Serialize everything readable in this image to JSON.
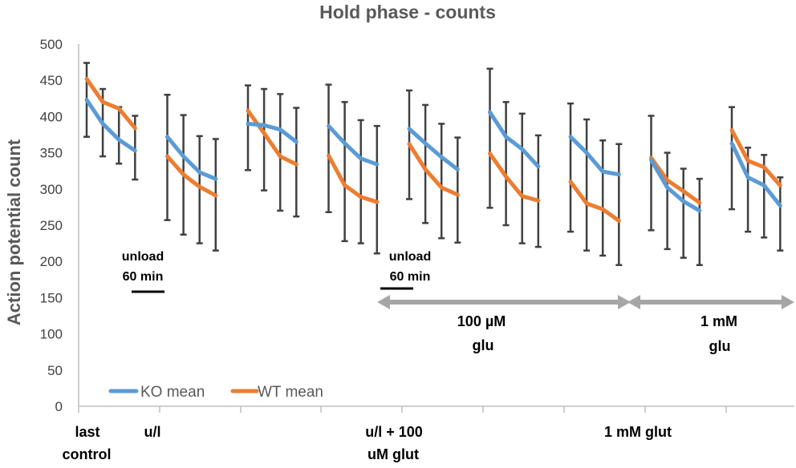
{
  "chart_data": {
    "type": "line",
    "title": "Hold phase - counts",
    "ylabel": "Action potential count",
    "xlabel": "",
    "ylim": [
      0,
      500
    ],
    "yticks": [
      0,
      50,
      100,
      150,
      200,
      250,
      300,
      350,
      400,
      450,
      500
    ],
    "grid": false,
    "legend_position": "bottom-left",
    "x_group_labels": [
      {
        "line1": "last",
        "line2": "control"
      },
      {
        "line1": "u/l",
        "line2": ""
      },
      {
        "line1": "u/l + 100",
        "line2": "uM glut"
      },
      {
        "line1": "1 mM glut",
        "line2": ""
      }
    ],
    "annotations": [
      {
        "line1": "unload",
        "line2": "60 min"
      },
      {
        "line1": "unload",
        "line2": "60 min"
      },
      {
        "line1": "100 µM",
        "line2": "glu"
      },
      {
        "line1": "1 mM",
        "line2": "glu"
      }
    ],
    "series": [
      {
        "name": "KO mean",
        "color": "#5B9BD5",
        "segments": [
          [
            {
              "x": 1,
              "y": 423,
              "lo": 372,
              "hi": 474
            },
            {
              "x": 2,
              "y": 390,
              "lo": 345,
              "hi": 438
            },
            {
              "x": 3,
              "y": 368,
              "lo": 335,
              "hi": 413
            },
            {
              "x": 4,
              "y": 353,
              "lo": 313,
              "hi": 401
            }
          ],
          [
            {
              "x": 6,
              "y": 372,
              "lo": 257,
              "hi": 430
            },
            {
              "x": 7,
              "y": 345,
              "lo": 237,
              "hi": 402
            },
            {
              "x": 8,
              "y": 323,
              "lo": 225,
              "hi": 373
            },
            {
              "x": 9,
              "y": 314,
              "lo": 215,
              "hi": 369
            }
          ],
          [
            {
              "x": 11,
              "y": 390,
              "lo": 326,
              "hi": 443
            },
            {
              "x": 12,
              "y": 388,
              "lo": 298,
              "hi": 438
            },
            {
              "x": 13,
              "y": 382,
              "lo": 270,
              "hi": 431
            },
            {
              "x": 14,
              "y": 365,
              "lo": 262,
              "hi": 412
            }
          ],
          [
            {
              "x": 16,
              "y": 387,
              "lo": 268,
              "hi": 444
            },
            {
              "x": 17,
              "y": 363,
              "lo": 228,
              "hi": 420
            },
            {
              "x": 18,
              "y": 342,
              "lo": 225,
              "hi": 395
            },
            {
              "x": 19,
              "y": 334,
              "lo": 211,
              "hi": 387
            }
          ],
          [
            {
              "x": 21,
              "y": 383,
              "lo": 286,
              "hi": 436
            },
            {
              "x": 22,
              "y": 363,
              "lo": 253,
              "hi": 416
            },
            {
              "x": 23,
              "y": 344,
              "lo": 232,
              "hi": 390
            },
            {
              "x": 24,
              "y": 327,
              "lo": 226,
              "hi": 371
            }
          ],
          [
            {
              "x": 26,
              "y": 406,
              "lo": 274,
              "hi": 466
            },
            {
              "x": 27,
              "y": 372,
              "lo": 250,
              "hi": 420
            },
            {
              "x": 28,
              "y": 355,
              "lo": 225,
              "hi": 404
            },
            {
              "x": 29,
              "y": 331,
              "lo": 220,
              "hi": 374
            }
          ],
          [
            {
              "x": 31,
              "y": 372,
              "lo": 241,
              "hi": 418
            },
            {
              "x": 32,
              "y": 350,
              "lo": 215,
              "hi": 396
            },
            {
              "x": 33,
              "y": 324,
              "lo": 208,
              "hi": 367
            },
            {
              "x": 34,
              "y": 320,
              "lo": 195,
              "hi": 362
            }
          ],
          [
            {
              "x": 36,
              "y": 340,
              "lo": 243,
              "hi": 401
            },
            {
              "x": 37,
              "y": 302,
              "lo": 217,
              "hi": 350
            },
            {
              "x": 38,
              "y": 283,
              "lo": 205,
              "hi": 328
            },
            {
              "x": 39,
              "y": 270,
              "lo": 195,
              "hi": 314
            }
          ],
          [
            {
              "x": 41,
              "y": 363,
              "lo": 272,
              "hi": 413
            },
            {
              "x": 42,
              "y": 316,
              "lo": 241,
              "hi": 357
            },
            {
              "x": 43,
              "y": 305,
              "lo": 233,
              "hi": 347
            },
            {
              "x": 44,
              "y": 277,
              "lo": 215,
              "hi": 316
            }
          ]
        ]
      },
      {
        "name": "WT mean",
        "color": "#ED7D31",
        "segments": [
          [
            {
              "x": 1,
              "y": 452
            },
            {
              "x": 2,
              "y": 420
            },
            {
              "x": 3,
              "y": 411
            },
            {
              "x": 4,
              "y": 384
            }
          ],
          [
            {
              "x": 6,
              "y": 345
            },
            {
              "x": 7,
              "y": 320
            },
            {
              "x": 8,
              "y": 303
            },
            {
              "x": 9,
              "y": 291
            }
          ],
          [
            {
              "x": 11,
              "y": 408
            },
            {
              "x": 12,
              "y": 377
            },
            {
              "x": 13,
              "y": 345
            },
            {
              "x": 14,
              "y": 334
            }
          ],
          [
            {
              "x": 16,
              "y": 346
            },
            {
              "x": 17,
              "y": 305
            },
            {
              "x": 18,
              "y": 289
            },
            {
              "x": 19,
              "y": 282
            }
          ],
          [
            {
              "x": 21,
              "y": 362
            },
            {
              "x": 22,
              "y": 327
            },
            {
              "x": 23,
              "y": 302
            },
            {
              "x": 24,
              "y": 292
            }
          ],
          [
            {
              "x": 26,
              "y": 349
            },
            {
              "x": 27,
              "y": 317
            },
            {
              "x": 28,
              "y": 290
            },
            {
              "x": 29,
              "y": 284
            }
          ],
          [
            {
              "x": 31,
              "y": 310
            },
            {
              "x": 32,
              "y": 280
            },
            {
              "x": 33,
              "y": 272
            },
            {
              "x": 34,
              "y": 256
            }
          ],
          [
            {
              "x": 36,
              "y": 343
            },
            {
              "x": 37,
              "y": 312
            },
            {
              "x": 38,
              "y": 297
            },
            {
              "x": 39,
              "y": 281
            }
          ],
          [
            {
              "x": 41,
              "y": 381
            },
            {
              "x": 42,
              "y": 339
            },
            {
              "x": 43,
              "y": 330
            },
            {
              "x": 44,
              "y": 305
            }
          ]
        ]
      }
    ]
  }
}
